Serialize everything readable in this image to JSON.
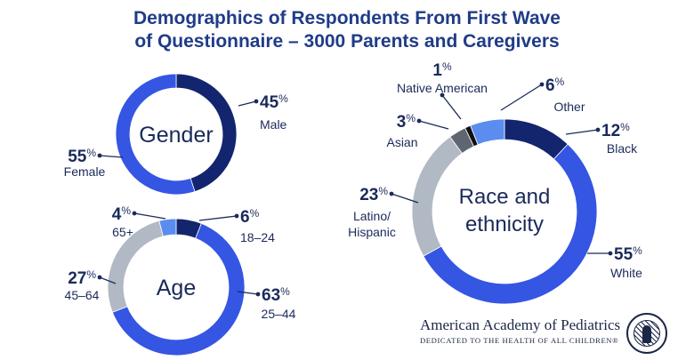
{
  "title": {
    "line1": "Demographics of Respondents From First Wave",
    "line2": "of Questionnaire – 3000 Parents and Caregivers"
  },
  "colors": {
    "navy": "#13256e",
    "blue": "#3555e3",
    "light_blue": "#5b8df0",
    "gray": "#b0b9c4",
    "dark_gray": "#5f6670",
    "black": "#111111",
    "label": "#1a2a5a"
  },
  "chart_data": [
    {
      "type": "pie",
      "center_label": "Gender",
      "slices": [
        {
          "name": "Male",
          "value": 45,
          "color": "#13256e"
        },
        {
          "name": "Female",
          "value": 55,
          "color": "#3555e3"
        }
      ]
    },
    {
      "type": "pie",
      "center_label": "Age",
      "slices": [
        {
          "name": "18–24",
          "value": 6,
          "color": "#13256e"
        },
        {
          "name": "25–44",
          "value": 63,
          "color": "#3555e3"
        },
        {
          "name": "45–64",
          "value": 27,
          "color": "#b0b9c4"
        },
        {
          "name": "65+",
          "value": 4,
          "color": "#5b8df0"
        }
      ]
    },
    {
      "type": "pie",
      "center_label": "Race and ethnicity",
      "center_lines": [
        "Race and",
        "ethnicity"
      ],
      "slices": [
        {
          "name": "Black",
          "value": 12,
          "color": "#13256e"
        },
        {
          "name": "White",
          "value": 55,
          "color": "#3555e3"
        },
        {
          "name": "Latino/ Hispanic",
          "value": 23,
          "color": "#b0b9c4"
        },
        {
          "name": "Asian",
          "value": 3,
          "color": "#5f6670"
        },
        {
          "name": "Native American",
          "value": 1,
          "color": "#111111"
        },
        {
          "name": "Other",
          "value": 6,
          "color": "#5b8df0"
        }
      ]
    }
  ],
  "brand": {
    "name": "American Academy of Pediatrics",
    "tagline": "DEDICATED TO THE HEALTH OF ALL CHILDREN®"
  }
}
